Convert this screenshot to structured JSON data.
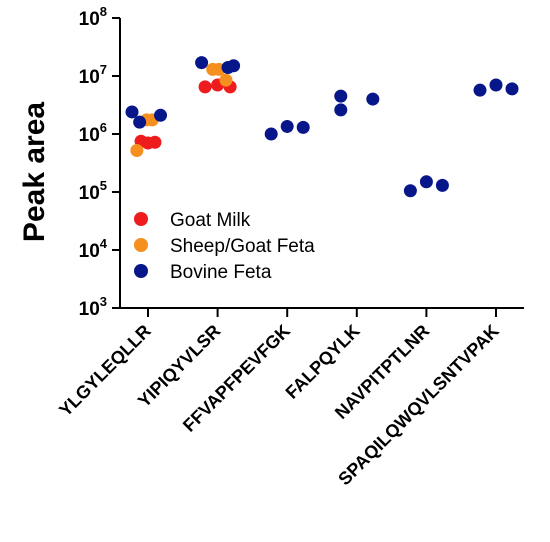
{
  "chart_data": {
    "type": "scatter",
    "title": "",
    "xlabel": "",
    "ylabel": "Peak area",
    "yscale": "log",
    "ylim": [
      1000,
      100000000
    ],
    "y_ticks": [
      {
        "value": 1000,
        "base": "10",
        "exp": "3"
      },
      {
        "value": 10000,
        "base": "10",
        "exp": "4"
      },
      {
        "value": 100000,
        "base": "10",
        "exp": "5"
      },
      {
        "value": 1000000,
        "base": "10",
        "exp": "6"
      },
      {
        "value": 10000000,
        "base": "10",
        "exp": "7"
      },
      {
        "value": 100000000,
        "base": "10",
        "exp": "8"
      }
    ],
    "categories": [
      "YLGYLEQLLR",
      "YIPIQYVLSR",
      "FFVAPFPEVFGK",
      "FALPQYLK",
      "NAVPITPTLNR",
      "SPAQILQWQVLSNTVPAK"
    ],
    "legend": {
      "placement": "lower-left"
    },
    "series": [
      {
        "name": "Goat Milk",
        "color": "#ee1c1c",
        "points": [
          {
            "category": "YLGYLEQLLR",
            "offset": -0.1,
            "value": 750000
          },
          {
            "category": "YLGYLEQLLR",
            "offset": 0.0,
            "value": 700000
          },
          {
            "category": "YLGYLEQLLR",
            "offset": 0.1,
            "value": 720000
          },
          {
            "category": "YIPIQYVLSR",
            "offset": -0.18,
            "value": 6500000
          },
          {
            "category": "YIPIQYVLSR",
            "offset": 0.0,
            "value": 7000000
          },
          {
            "category": "YIPIQYVLSR",
            "offset": 0.18,
            "value": 6500000
          }
        ]
      },
      {
        "name": "Sheep/Goat Feta",
        "color": "#f5901e",
        "points": [
          {
            "category": "YLGYLEQLLR",
            "offset": -0.16,
            "value": 520000
          },
          {
            "category": "YLGYLEQLLR",
            "offset": -0.02,
            "value": 1750000
          },
          {
            "category": "YLGYLEQLLR",
            "offset": 0.06,
            "value": 1750000
          },
          {
            "category": "YIPIQYVLSR",
            "offset": -0.07,
            "value": 13000000
          },
          {
            "category": "YIPIQYVLSR",
            "offset": 0.02,
            "value": 13000000
          },
          {
            "category": "YIPIQYVLSR",
            "offset": 0.12,
            "value": 8500000
          }
        ]
      },
      {
        "name": "Bovine Feta",
        "color": "#07178a",
        "points": [
          {
            "category": "YLGYLEQLLR",
            "offset": -0.23,
            "value": 2400000
          },
          {
            "category": "YLGYLEQLLR",
            "offset": -0.12,
            "value": 1600000
          },
          {
            "category": "YLGYLEQLLR",
            "offset": 0.18,
            "value": 2100000
          },
          {
            "category": "YIPIQYVLSR",
            "offset": -0.23,
            "value": 17000000
          },
          {
            "category": "YIPIQYVLSR",
            "offset": 0.15,
            "value": 14000000
          },
          {
            "category": "YIPIQYVLSR",
            "offset": 0.23,
            "value": 15000000
          },
          {
            "category": "FFVAPFPEVFGK",
            "offset": -0.23,
            "value": 1000000
          },
          {
            "category": "FFVAPFPEVFGK",
            "offset": 0.0,
            "value": 1350000
          },
          {
            "category": "FFVAPFPEVFGK",
            "offset": 0.23,
            "value": 1300000
          },
          {
            "category": "FALPQYLK",
            "offset": -0.23,
            "value": 4500000
          },
          {
            "category": "FALPQYLK",
            "offset": -0.23,
            "value": 2600000
          },
          {
            "category": "FALPQYLK",
            "offset": 0.23,
            "value": 4000000
          },
          {
            "category": "NAVPITPTLNR",
            "offset": -0.23,
            "value": 105000
          },
          {
            "category": "NAVPITPTLNR",
            "offset": 0.0,
            "value": 150000
          },
          {
            "category": "NAVPITPTLNR",
            "offset": 0.23,
            "value": 130000
          },
          {
            "category": "SPAQILQWQVLSNTVPAK",
            "offset": -0.23,
            "value": 5700000
          },
          {
            "category": "SPAQILQWQVLSNTVPAK",
            "offset": 0.0,
            "value": 7000000
          },
          {
            "category": "SPAQILQWQVLSNTVPAK",
            "offset": 0.23,
            "value": 6000000
          }
        ]
      }
    ]
  }
}
